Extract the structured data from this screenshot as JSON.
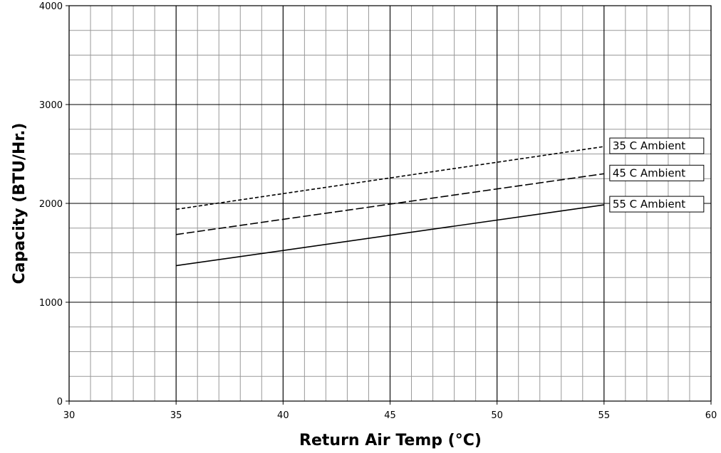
{
  "chart_data": {
    "type": "line",
    "xlabel": "Return Air Temp (°C)",
    "ylabel": "Capacity (BTU/Hr.)",
    "xlim": [
      30,
      60
    ],
    "ylim": [
      0,
      4000
    ],
    "x_ticks": [
      "30",
      "35",
      "40",
      "45",
      "50",
      "55",
      "60"
    ],
    "y_ticks": [
      "0",
      "1000",
      "2000",
      "3000",
      "4000"
    ],
    "minor_grid": {
      "x_step": 1,
      "y_step": 250
    },
    "major_grid": {
      "x_step": 5,
      "y_step": 1000
    },
    "grid": true,
    "legend_placement": "right, at line ends",
    "series": [
      {
        "name": "35 C Ambient",
        "style": "dotted",
        "x": [
          35,
          55
        ],
        "y": [
          1940,
          2575
        ]
      },
      {
        "name": "45 C Ambient",
        "style": "dashed",
        "x": [
          35,
          55
        ],
        "y": [
          1685,
          2300
        ]
      },
      {
        "name": "55 C Ambient",
        "style": "solid",
        "x": [
          35,
          55
        ],
        "y": [
          1370,
          1985
        ]
      }
    ]
  },
  "colors": {
    "line": "#000000",
    "minor_grid": "#999999",
    "major_grid": "#000000"
  }
}
